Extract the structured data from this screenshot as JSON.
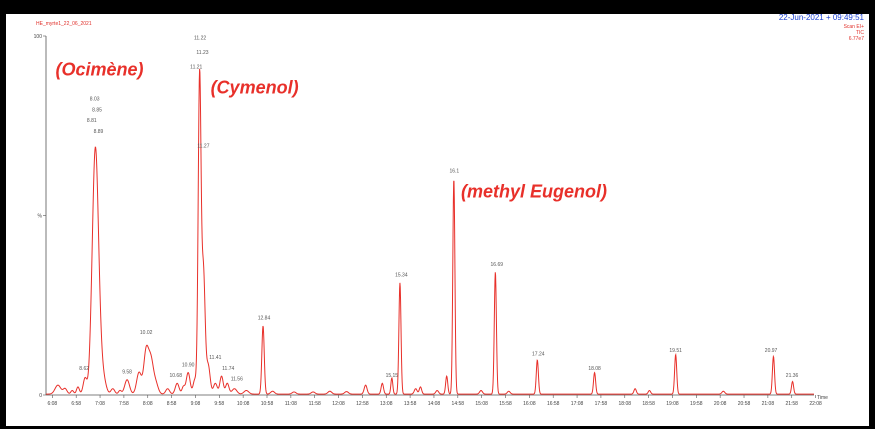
{
  "header": {
    "file_id": "HE_myrte1_22_06_2021",
    "datetime": "22-Jun-2021 + 09:49:51",
    "scan_mode": "Scan EI+",
    "trace": "TIC",
    "intensity": "6.77e7"
  },
  "colors": {
    "trace": "#e8302a",
    "annotation": "#e8302a",
    "datetime": "#1a3fd0"
  },
  "chart_data": {
    "type": "line",
    "xlabel": "Time",
    "ylabel": "",
    "xlim": [
      6.0,
      22.1
    ],
    "ylim": [
      0,
      100
    ],
    "y_ticks": [
      {
        "value": 100,
        "label": "100"
      },
      {
        "value": 50,
        "label": "%"
      },
      {
        "value": 0,
        "label": "0"
      }
    ],
    "x_ticks": [
      {
        "value": 6.133,
        "label": "6:08"
      },
      {
        "value": 6.633,
        "label": "6:58"
      },
      {
        "value": 7.133,
        "label": "7:08"
      },
      {
        "value": 7.633,
        "label": "7:58"
      },
      {
        "value": 8.133,
        "label": "8:08"
      },
      {
        "value": 8.633,
        "label": "8:58"
      },
      {
        "value": 9.133,
        "label": "9:08"
      },
      {
        "value": 9.633,
        "label": "9:58"
      },
      {
        "value": 10.133,
        "label": "10:08"
      },
      {
        "value": 10.633,
        "label": "10:58"
      },
      {
        "value": 11.133,
        "label": "11:08"
      },
      {
        "value": 11.633,
        "label": "11:58"
      },
      {
        "value": 12.133,
        "label": "12:08"
      },
      {
        "value": 12.633,
        "label": "12:58"
      },
      {
        "value": 13.133,
        "label": "13:08"
      },
      {
        "value": 13.633,
        "label": "13:58"
      },
      {
        "value": 14.133,
        "label": "14:08"
      },
      {
        "value": 14.633,
        "label": "14:58"
      },
      {
        "value": 15.133,
        "label": "15:08"
      },
      {
        "value": 15.633,
        "label": "15:58"
      },
      {
        "value": 16.133,
        "label": "16:08"
      },
      {
        "value": 16.633,
        "label": "16:58"
      },
      {
        "value": 17.133,
        "label": "17:08"
      },
      {
        "value": 17.633,
        "label": "17:58"
      },
      {
        "value": 18.133,
        "label": "18:08"
      },
      {
        "value": 18.633,
        "label": "18:58"
      },
      {
        "value": 19.133,
        "label": "19:08"
      },
      {
        "value": 19.633,
        "label": "19:58"
      },
      {
        "value": 20.133,
        "label": "20:08"
      },
      {
        "value": 20.633,
        "label": "20:58"
      },
      {
        "value": 21.133,
        "label": "21:08"
      },
      {
        "value": 21.633,
        "label": "21:58"
      },
      {
        "value": 22.133,
        "label": "22:08"
      }
    ],
    "peaks": [
      {
        "rt": 6.25,
        "height": 2.5,
        "width": 0.06
      },
      {
        "rt": 6.4,
        "height": 1.5,
        "width": 0.04
      },
      {
        "rt": 6.55,
        "height": 1.0,
        "width": 0.03
      },
      {
        "rt": 6.67,
        "height": 2.0,
        "width": 0.03
      },
      {
        "rt": 6.82,
        "height": 4.5,
        "width": 0.04
      },
      {
        "rt": 6.94,
        "height": 5.0,
        "width": 0.04
      },
      {
        "rt": 7.02,
        "height": 55.0,
        "width": 0.055
      },
      {
        "rt": 7.08,
        "height": 22.0,
        "width": 0.05
      },
      {
        "rt": 7.14,
        "height": 8.0,
        "width": 0.05
      },
      {
        "rt": 7.22,
        "height": 3.0,
        "width": 0.05
      },
      {
        "rt": 7.4,
        "height": 1.5,
        "width": 0.04
      },
      {
        "rt": 7.55,
        "height": 1.0,
        "width": 0.03
      },
      {
        "rt": 7.7,
        "height": 4.0,
        "width": 0.05
      },
      {
        "rt": 7.95,
        "height": 6.0,
        "width": 0.05
      },
      {
        "rt": 8.1,
        "height": 12.0,
        "width": 0.05
      },
      {
        "rt": 8.2,
        "height": 9.0,
        "width": 0.05
      },
      {
        "rt": 8.3,
        "height": 3.0,
        "width": 0.05
      },
      {
        "rt": 8.55,
        "height": 1.5,
        "width": 0.04
      },
      {
        "rt": 8.75,
        "height": 3.0,
        "width": 0.04
      },
      {
        "rt": 8.88,
        "height": 2.0,
        "width": 0.03
      },
      {
        "rt": 8.98,
        "height": 6.0,
        "width": 0.04
      },
      {
        "rt": 9.12,
        "height": 4.0,
        "width": 0.035
      },
      {
        "rt": 9.22,
        "height": 88.0,
        "width": 0.03
      },
      {
        "rt": 9.3,
        "height": 34.0,
        "width": 0.035
      },
      {
        "rt": 9.4,
        "height": 8.0,
        "width": 0.04
      },
      {
        "rt": 9.55,
        "height": 3.0,
        "width": 0.04
      },
      {
        "rt": 9.68,
        "height": 5.0,
        "width": 0.035
      },
      {
        "rt": 9.8,
        "height": 3.0,
        "width": 0.035
      },
      {
        "rt": 9.95,
        "height": 1.5,
        "width": 0.05
      },
      {
        "rt": 10.2,
        "height": 1.0,
        "width": 0.05
      },
      {
        "rt": 10.55,
        "height": 19.0,
        "width": 0.025
      },
      {
        "rt": 10.75,
        "height": 0.8,
        "width": 0.04
      },
      {
        "rt": 11.2,
        "height": 0.6,
        "width": 0.04
      },
      {
        "rt": 11.6,
        "height": 0.6,
        "width": 0.04
      },
      {
        "rt": 11.95,
        "height": 0.8,
        "width": 0.04
      },
      {
        "rt": 12.3,
        "height": 0.7,
        "width": 0.04
      },
      {
        "rt": 12.7,
        "height": 2.5,
        "width": 0.03
      },
      {
        "rt": 13.05,
        "height": 3.0,
        "width": 0.025
      },
      {
        "rt": 13.25,
        "height": 4.5,
        "width": 0.02
      },
      {
        "rt": 13.42,
        "height": 31.0,
        "width": 0.022
      },
      {
        "rt": 13.75,
        "height": 1.5,
        "width": 0.03
      },
      {
        "rt": 13.85,
        "height": 2.0,
        "width": 0.025
      },
      {
        "rt": 14.2,
        "height": 1.0,
        "width": 0.03
      },
      {
        "rt": 14.4,
        "height": 5.0,
        "width": 0.022
      },
      {
        "rt": 14.55,
        "height": 60.0,
        "width": 0.022
      },
      {
        "rt": 15.12,
        "height": 1.0,
        "width": 0.03
      },
      {
        "rt": 15.42,
        "height": 34.0,
        "width": 0.022
      },
      {
        "rt": 15.7,
        "height": 0.8,
        "width": 0.03
      },
      {
        "rt": 16.3,
        "height": 9.5,
        "width": 0.022
      },
      {
        "rt": 17.5,
        "height": 6.0,
        "width": 0.022
      },
      {
        "rt": 18.35,
        "height": 1.5,
        "width": 0.025
      },
      {
        "rt": 18.65,
        "height": 1.0,
        "width": 0.025
      },
      {
        "rt": 19.2,
        "height": 11.0,
        "width": 0.022
      },
      {
        "rt": 20.2,
        "height": 0.8,
        "width": 0.03
      },
      {
        "rt": 21.25,
        "height": 10.5,
        "width": 0.022
      },
      {
        "rt": 21.65,
        "height": 3.5,
        "width": 0.022
      }
    ],
    "peak_labels": [
      {
        "text": "8.03",
        "x": 7.02,
        "y": 82
      },
      {
        "text": "8.85",
        "x": 7.07,
        "y": 79
      },
      {
        "text": "8.81",
        "x": 6.96,
        "y": 76
      },
      {
        "text": "8.89",
        "x": 7.1,
        "y": 73
      },
      {
        "text": "8.62",
        "x": 6.8,
        "y": 7
      },
      {
        "text": "9.58",
        "x": 7.7,
        "y": 6
      },
      {
        "text": "10.02",
        "x": 8.1,
        "y": 17
      },
      {
        "text": "10.68",
        "x": 8.72,
        "y": 5
      },
      {
        "text": "10.90",
        "x": 8.98,
        "y": 8
      },
      {
        "text": "11.22",
        "x": 9.23,
        "y": 99
      },
      {
        "text": "11.23",
        "x": 9.28,
        "y": 95
      },
      {
        "text": "11.21",
        "x": 9.15,
        "y": 91
      },
      {
        "text": "11.27",
        "x": 9.3,
        "y": 69
      },
      {
        "text": "11.41",
        "x": 9.55,
        "y": 10
      },
      {
        "text": "11.74",
        "x": 9.82,
        "y": 7
      },
      {
        "text": "11.56",
        "x": 10.0,
        "y": 4
      },
      {
        "text": "12.84",
        "x": 10.57,
        "y": 21
      },
      {
        "text": "15.15",
        "x": 13.25,
        "y": 5
      },
      {
        "text": "15.34",
        "x": 13.45,
        "y": 33
      },
      {
        "text": "16.1",
        "x": 14.56,
        "y": 62
      },
      {
        "text": "16.69",
        "x": 15.45,
        "y": 36
      },
      {
        "text": "17.24",
        "x": 16.32,
        "y": 11
      },
      {
        "text": "18.08",
        "x": 17.5,
        "y": 7
      },
      {
        "text": "19.51",
        "x": 19.2,
        "y": 12
      },
      {
        "text": "20.97",
        "x": 21.2,
        "y": 12
      },
      {
        "text": "21.36",
        "x": 21.64,
        "y": 5
      }
    ],
    "annotations": [
      {
        "text": "(Ocimène)",
        "x": 6.2,
        "y": 89
      },
      {
        "text": "(Cymenol)",
        "x": 9.45,
        "y": 84
      },
      {
        "text": "(methyl Eugenol)",
        "x": 14.7,
        "y": 55
      }
    ]
  }
}
